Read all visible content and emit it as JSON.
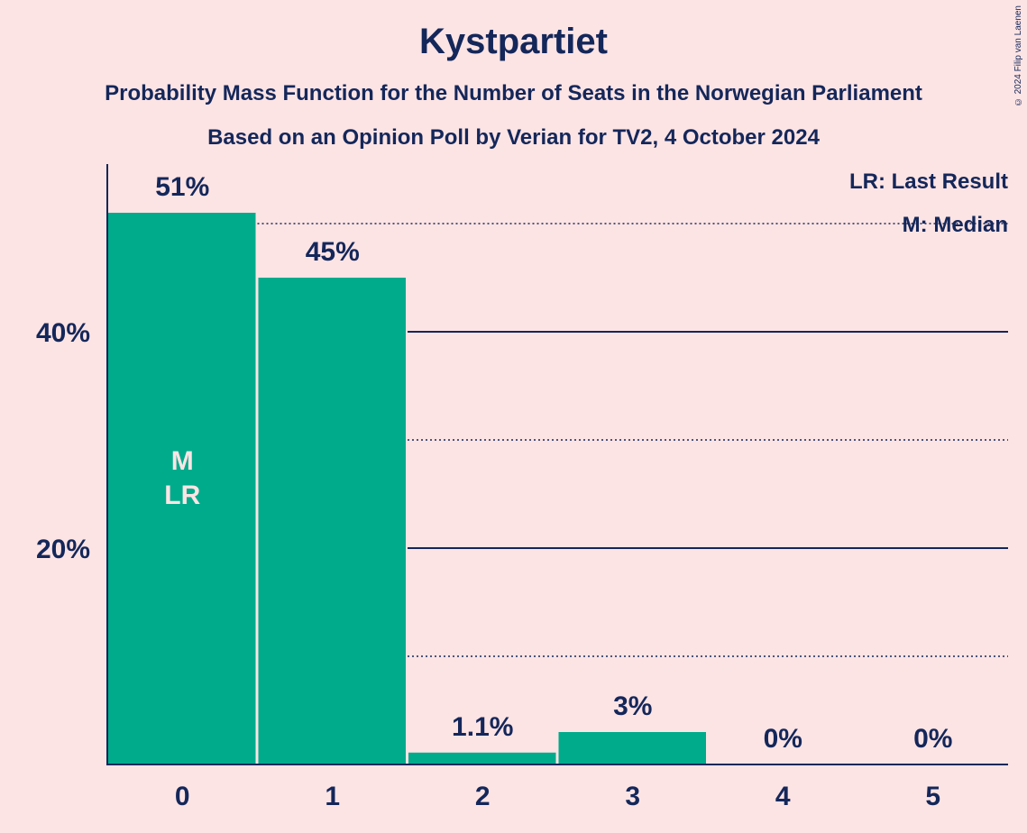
{
  "title": "Kystpartiet",
  "subtitle1": "Probability Mass Function for the Number of Seats in the Norwegian Parliament",
  "subtitle2": "Based on an Opinion Poll by Verian for TV2, 4 October 2024",
  "copyright": "© 2024 Filip van Laenen",
  "legend": {
    "last_result": "LR: Last Result",
    "median": "M: Median"
  },
  "colors": {
    "bar": "#00ab8c",
    "axis": "#14275a",
    "background": "#fde4e4"
  },
  "chart_data": {
    "type": "bar",
    "categories": [
      "0",
      "1",
      "2",
      "3",
      "4",
      "5"
    ],
    "values": [
      51,
      45,
      1.1,
      3,
      0,
      0
    ],
    "value_labels": [
      "51%",
      "45%",
      "1.1%",
      "3%",
      "0%",
      "0%"
    ],
    "ylim": [
      0,
      55
    ],
    "yticks": [
      {
        "value": 20,
        "label": "20%"
      },
      {
        "value": 40,
        "label": "40%"
      }
    ],
    "gridlines_dotted": [
      10,
      30,
      50
    ],
    "gridlines_solid": [
      20,
      40
    ],
    "median_index": 0,
    "last_result_index": 0,
    "median_marker": "M",
    "last_result_marker": "LR"
  }
}
